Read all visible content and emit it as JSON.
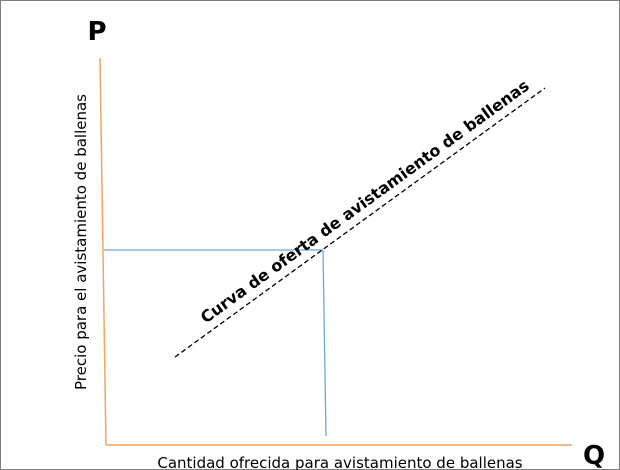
{
  "diagram": {
    "price_symbol": "P",
    "quantity_symbol": "Q",
    "y_axis_label": "Precio para el avistamiento de ballenas",
    "x_axis_label": "Cantidad ofrecida para avistamiento de ballenas",
    "curve_label": "Curva de oferta de avistamiento de ballenas"
  }
}
